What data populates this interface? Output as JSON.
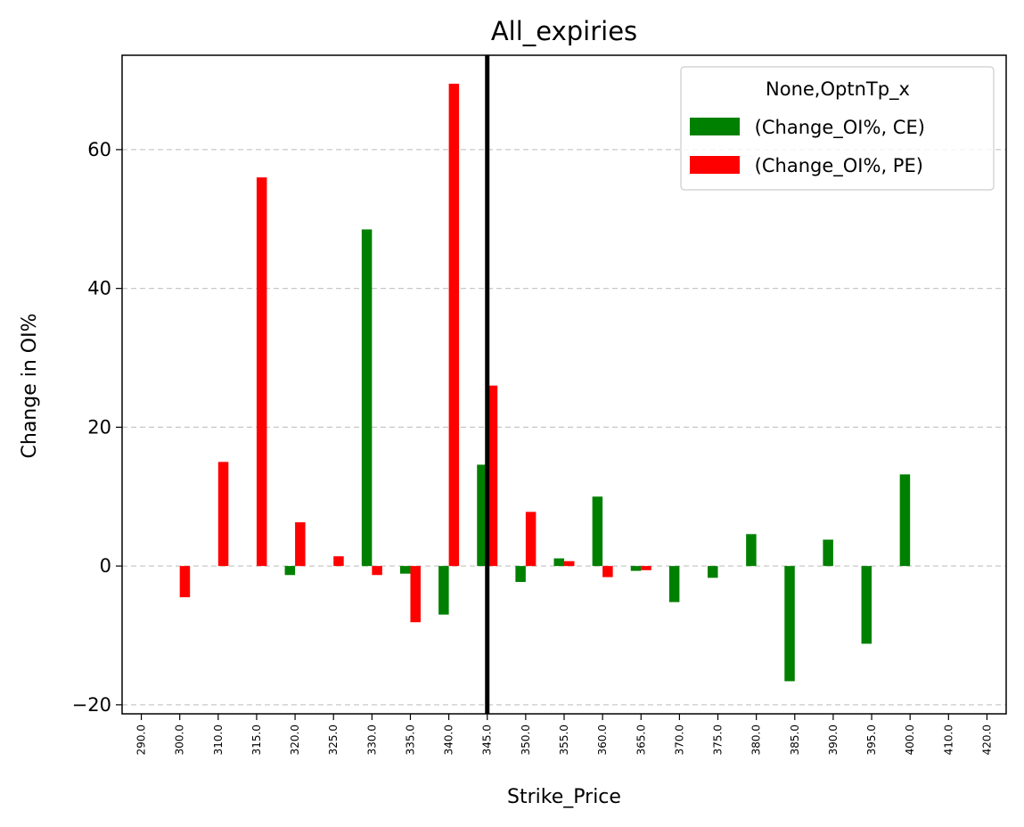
{
  "chart_data": {
    "type": "bar",
    "title": "All_expiries",
    "xlabel": "Strike_Price",
    "ylabel": "Change in OI%",
    "categories": [
      "290.0",
      "300.0",
      "310.0",
      "315.0",
      "320.0",
      "325.0",
      "330.0",
      "335.0",
      "340.0",
      "345.0",
      "350.0",
      "355.0",
      "360.0",
      "365.0",
      "370.0",
      "375.0",
      "380.0",
      "385.0",
      "390.0",
      "395.0",
      "400.0",
      "410.0",
      "420.0"
    ],
    "series": [
      {
        "name": " (Change_OI%, CE)",
        "color": "#008000",
        "values": [
          0,
          0,
          0,
          0,
          -1.3,
          0,
          48.5,
          -1.1,
          -7.0,
          14.6,
          -2.3,
          1.1,
          10.0,
          -0.7,
          -5.2,
          -1.7,
          4.6,
          -16.6,
          3.8,
          -11.2,
          13.2,
          0,
          0
        ]
      },
      {
        "name": " (Change_OI%, PE)",
        "color": "#ff0000",
        "values": [
          0,
          -4.5,
          15.0,
          56.0,
          6.3,
          1.4,
          -1.3,
          -8.1,
          69.5,
          26.0,
          7.8,
          0.7,
          -1.6,
          -0.6,
          0,
          0,
          0,
          0,
          0,
          0,
          0,
          0,
          0
        ]
      }
    ],
    "yticks": [
      -20,
      0,
      20,
      40,
      60
    ],
    "ylim": [
      -21.3,
      73.6
    ],
    "grid": "horizontal dashed",
    "legend": {
      "title": "None,OptnTp_x",
      "position": "top-right"
    },
    "vertical_line": {
      "category": "345.0",
      "color": "#000000"
    }
  }
}
